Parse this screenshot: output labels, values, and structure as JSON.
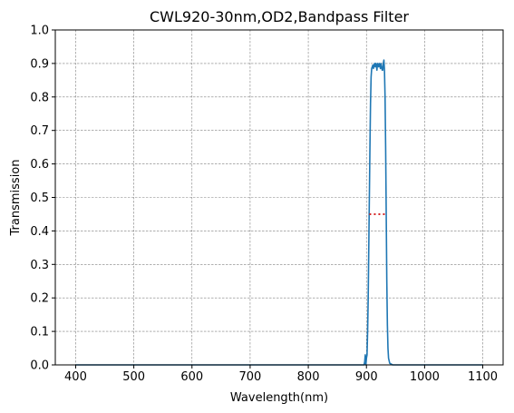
{
  "chart_data": {
    "type": "line",
    "title": "CWL920-30nm,OD2,Bandpass Filter",
    "xlabel": "Wavelength(nm)",
    "ylabel": "Transmission",
    "xlim": [
      365,
      1135
    ],
    "ylim": [
      0,
      1.0
    ],
    "xticks": [
      400,
      500,
      600,
      700,
      800,
      900,
      1000,
      1100
    ],
    "yticks": [
      0.0,
      0.1,
      0.2,
      0.3,
      0.4,
      0.5,
      0.6,
      0.7,
      0.8,
      0.9,
      1.0
    ],
    "grid": true,
    "series": [
      {
        "color": "#1f77b4",
        "style": "solid",
        "points": [
          [
            400,
            0.0
          ],
          [
            880,
            0.0
          ],
          [
            896,
            0.0
          ],
          [
            897,
            0.01
          ],
          [
            898,
            0.03
          ],
          [
            899,
            0.0
          ],
          [
            900,
            0.02
          ],
          [
            901,
            0.03
          ],
          [
            902,
            0.1
          ],
          [
            903,
            0.2
          ],
          [
            904,
            0.35
          ],
          [
            905,
            0.5
          ],
          [
            906,
            0.65
          ],
          [
            907,
            0.78
          ],
          [
            908,
            0.86
          ],
          [
            909,
            0.885
          ],
          [
            910,
            0.89
          ],
          [
            911,
            0.895
          ],
          [
            912,
            0.885
          ],
          [
            913,
            0.895
          ],
          [
            914,
            0.9
          ],
          [
            915,
            0.89
          ],
          [
            916,
            0.9
          ],
          [
            917,
            0.895
          ],
          [
            918,
            0.88
          ],
          [
            919,
            0.9
          ],
          [
            920,
            0.895
          ],
          [
            921,
            0.89
          ],
          [
            922,
            0.9
          ],
          [
            923,
            0.895
          ],
          [
            924,
            0.885
          ],
          [
            925,
            0.9
          ],
          [
            926,
            0.89
          ],
          [
            927,
            0.88
          ],
          [
            928,
            0.88
          ],
          [
            929,
            0.9
          ],
          [
            930,
            0.91
          ],
          [
            931,
            0.88
          ],
          [
            932,
            0.8
          ],
          [
            933,
            0.65
          ],
          [
            934,
            0.45
          ],
          [
            935,
            0.25
          ],
          [
            936,
            0.12
          ],
          [
            937,
            0.05
          ],
          [
            938,
            0.02
          ],
          [
            940,
            0.005
          ],
          [
            945,
            0.0
          ],
          [
            1100,
            0.0
          ]
        ]
      },
      {
        "color": "#d62728",
        "style": "dotted",
        "points": [
          [
            905,
            0.45
          ],
          [
            935,
            0.45
          ]
        ]
      }
    ]
  }
}
